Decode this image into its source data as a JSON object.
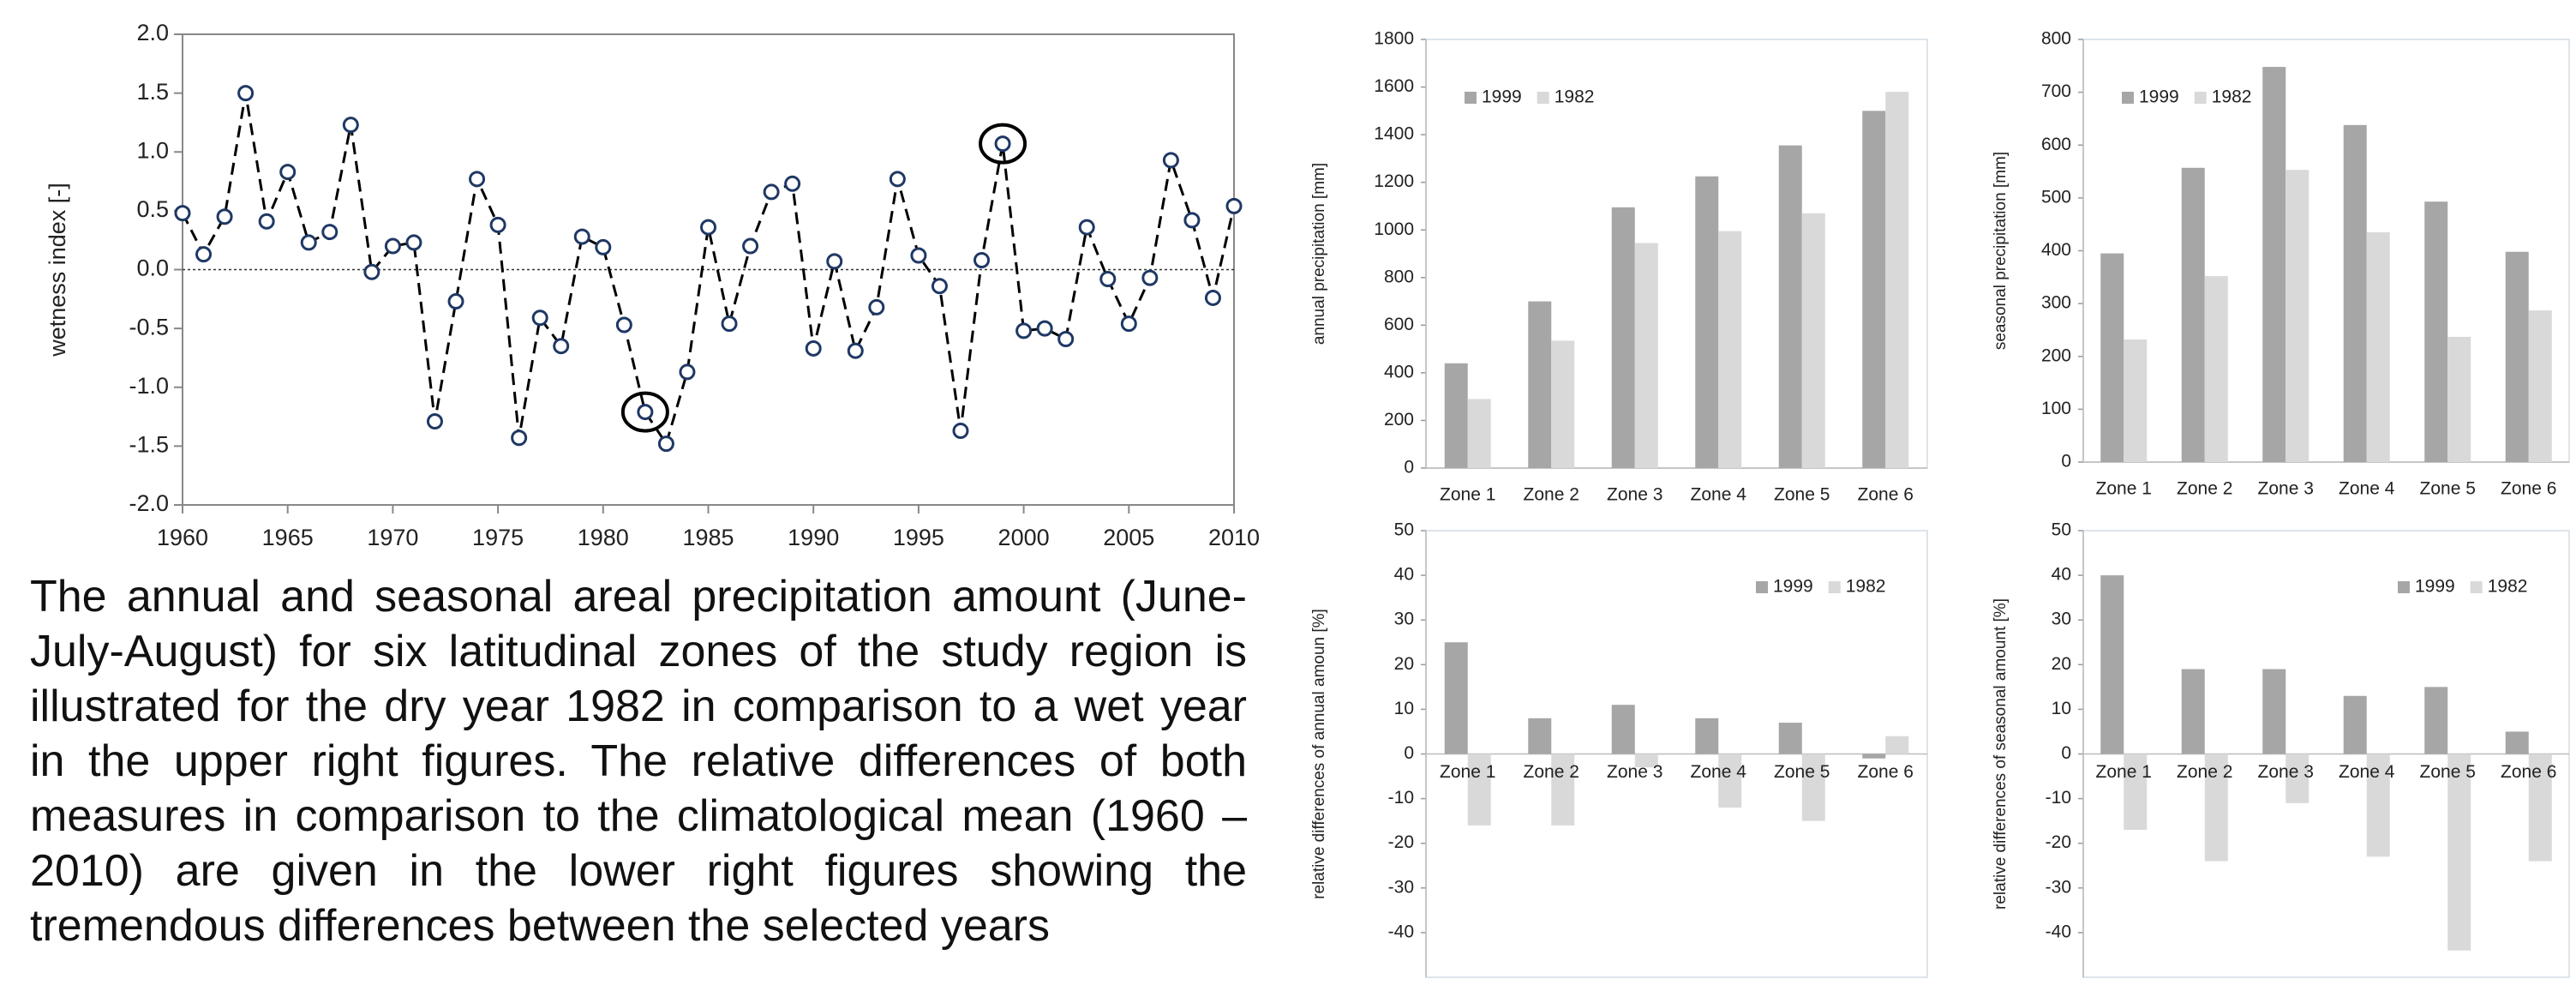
{
  "chart_data": [
    {
      "type": "line",
      "ylabel": "wetness index [-]",
      "x": [
        1960,
        1961,
        1962,
        1963,
        1964,
        1965,
        1966,
        1967,
        1968,
        1969,
        1970,
        1971,
        1972,
        1973,
        1974,
        1975,
        1976,
        1977,
        1978,
        1979,
        1980,
        1981,
        1982,
        1983,
        1984,
        1985,
        1986,
        1987,
        1988,
        1989,
        1990,
        1991,
        1992,
        1993,
        1994,
        1995,
        1996,
        1997,
        1998,
        1999,
        2000,
        2001,
        2002,
        2003,
        2004,
        2005,
        2006,
        2007,
        2008,
        2009,
        2010
      ],
      "values": [
        0.48,
        0.13,
        0.45,
        1.5,
        0.41,
        0.83,
        0.23,
        0.32,
        1.23,
        -0.02,
        0.2,
        0.23,
        -1.29,
        -0.27,
        0.77,
        0.38,
        -1.43,
        -0.41,
        -0.65,
        0.28,
        0.19,
        -0.47,
        -1.21,
        -1.48,
        -0.87,
        0.36,
        -0.46,
        0.2,
        0.66,
        0.73,
        -0.67,
        0.07,
        -0.69,
        -0.32,
        0.77,
        0.12,
        -0.14,
        -1.37,
        0.08,
        1.07,
        -0.52,
        -0.5,
        -0.59,
        0.36,
        -0.08,
        -0.46,
        -0.07,
        0.93,
        0.42,
        -0.24,
        0.54
      ],
      "highlight_x": [
        1982,
        1999
      ],
      "xlim": [
        1960,
        2010
      ],
      "xticks": [
        1960,
        1965,
        1970,
        1975,
        1980,
        1985,
        1990,
        1995,
        2000,
        2005,
        2010
      ],
      "ylim": [
        -2,
        2
      ],
      "yticks": [
        {
          "value": -2,
          "label": "-2.0"
        },
        {
          "value": -1.5,
          "label": "-1.5"
        },
        {
          "value": -1,
          "label": "-1.0"
        },
        {
          "value": -0.5,
          "label": "-0.5"
        },
        {
          "value": 0,
          "label": "0.0"
        },
        {
          "value": 0.5,
          "label": "0.5"
        },
        {
          "value": 1,
          "label": "1.0"
        },
        {
          "value": 1.5,
          "label": "1.5"
        },
        {
          "value": 2,
          "label": "2.0"
        }
      ],
      "line_color": "#000000",
      "marker_color": "#1f3864"
    },
    {
      "type": "bar",
      "ylabel": "annual precipitation [mm]",
      "categories": [
        "Zone 1",
        "Zone 2",
        "Zone 3",
        "Zone 4",
        "Zone 5",
        "Zone 6"
      ],
      "series": [
        {
          "name": "1999",
          "color": "#a6a6a6",
          "values": [
            440,
            700,
            1095,
            1225,
            1355,
            1500
          ]
        },
        {
          "name": "1982",
          "color": "#d9d9d9",
          "values": [
            290,
            535,
            945,
            995,
            1070,
            1580
          ]
        }
      ],
      "ylim": [
        0,
        1800
      ],
      "yticks": [
        0,
        200,
        400,
        600,
        800,
        1000,
        1200,
        1400,
        1600,
        1800
      ],
      "legend": "upper left"
    },
    {
      "type": "bar",
      "ylabel": "seasonal precipitation [mm]",
      "categories": [
        "Zone 1",
        "Zone 2",
        "Zone 3",
        "Zone 4",
        "Zone 5",
        "Zone 6"
      ],
      "series": [
        {
          "name": "1999",
          "color": "#a6a6a6",
          "values": [
            395,
            557,
            748,
            638,
            493,
            398
          ]
        },
        {
          "name": "1982",
          "color": "#d9d9d9",
          "values": [
            232,
            352,
            553,
            435,
            237,
            287
          ]
        }
      ],
      "ylim": [
        0,
        800
      ],
      "yticks": [
        0,
        100,
        200,
        300,
        400,
        500,
        600,
        700,
        800
      ],
      "legend": "upper left"
    },
    {
      "type": "bar",
      "ylabel": "relative differences of annual  amoun  [%]",
      "categories": [
        "Zone 1",
        "Zone 2",
        "Zone 3",
        "Zone 4",
        "Zone 5",
        "Zone 6"
      ],
      "series": [
        {
          "name": "1999",
          "color": "#a6a6a6",
          "values": [
            25,
            8,
            11,
            8,
            7,
            -1
          ]
        },
        {
          "name": "1982",
          "color": "#d9d9d9",
          "values": [
            -16,
            -16,
            -3,
            -12,
            -15,
            4
          ]
        }
      ],
      "ylim": [
        -50,
        50
      ],
      "yticks": [
        -40,
        -30,
        -20,
        -10,
        0,
        10,
        20,
        30,
        40,
        50
      ],
      "legend": "upper right"
    },
    {
      "type": "bar",
      "ylabel": "relative differences of seasonal amount [%]",
      "categories": [
        "Zone 1",
        "Zone 2",
        "Zone 3",
        "Zone 4",
        "Zone 5",
        "Zone 6"
      ],
      "series": [
        {
          "name": "1999",
          "color": "#a6a6a6",
          "values": [
            40,
            19,
            19,
            13,
            15,
            5
          ]
        },
        {
          "name": "1982",
          "color": "#d9d9d9",
          "values": [
            -17,
            -24,
            -11,
            -23,
            -44,
            -24
          ]
        }
      ],
      "ylim": [
        -50,
        50
      ],
      "yticks": [
        -40,
        -30,
        -20,
        -10,
        0,
        10,
        20,
        30,
        40,
        50
      ],
      "legend": "upper right"
    }
  ],
  "text": "The annual and seasonal areal precipitation amount (June-July-August) for six latitudinal zones of the study region is illustrated for the dry year 1982 in comparison to  a wet year in the upper right figures. The relative differences of both measures in comparison to the climatological mean (1960 – 2010) are given in the lower right figures showing the tremendous differences between the selected years"
}
